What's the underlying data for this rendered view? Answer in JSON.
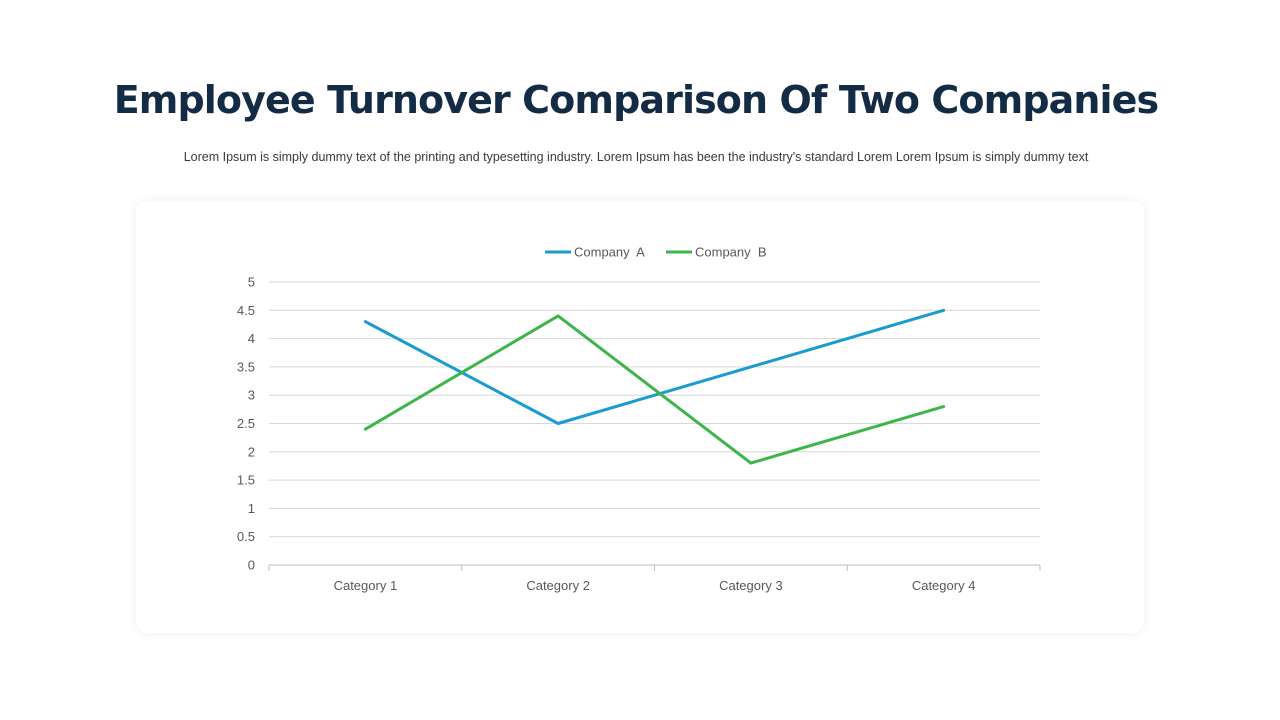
{
  "slide": {
    "title": "Employee Turnover Comparison Of Two Companies",
    "subtitle": "Lorem Ipsum is simply dummy text of the printing and typesetting industry. Lorem Ipsum has been the industry's standard Lorem Lorem Ipsum is simply dummy text"
  },
  "chart_data": {
    "type": "line",
    "title": "",
    "xlabel": "",
    "ylabel": "",
    "categories": [
      "Category 1",
      "Category 2",
      "Category 3",
      "Category 4"
    ],
    "ylim": [
      0,
      5
    ],
    "yticks": [
      "0",
      "0.5",
      "1",
      "1.5",
      "2",
      "2.5",
      "3",
      "3.5",
      "4",
      "4.5",
      "5"
    ],
    "grid": true,
    "legend_position": "top",
    "series": [
      {
        "name": "Company  A",
        "color": "#1a9bd1",
        "values": [
          4.3,
          2.5,
          3.5,
          4.5
        ]
      },
      {
        "name": "Company  B",
        "color": "#3cb54a",
        "values": [
          2.4,
          4.4,
          1.8,
          2.8
        ]
      }
    ]
  }
}
